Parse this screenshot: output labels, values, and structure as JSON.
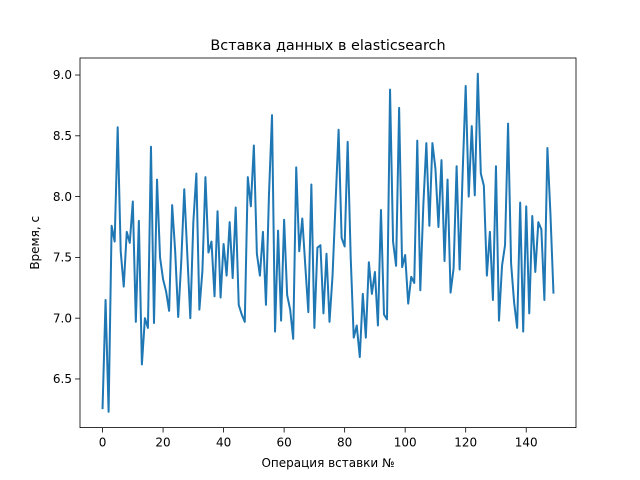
{
  "chart_data": {
    "type": "line",
    "title": "Вставка данных в elasticsearch",
    "xlabel": "Операция вставки №",
    "ylabel": "Время, с",
    "xlim": [
      -7.45,
      156.45
    ],
    "ylim": [
      6.1,
      9.14
    ],
    "xticks": [
      0,
      20,
      40,
      60,
      80,
      100,
      120,
      140
    ],
    "xtick_labels": [
      "0",
      "20",
      "40",
      "60",
      "80",
      "100",
      "120",
      "140"
    ],
    "yticks": [
      6.5,
      7.0,
      7.5,
      8.0,
      8.5,
      9.0
    ],
    "ytick_labels": [
      "6.5",
      "7.0",
      "7.5",
      "8.0",
      "8.5",
      "9.0"
    ],
    "grid": false,
    "legend": "none",
    "series": [
      {
        "color": "#1f77b4",
        "x": [
          0,
          1,
          2,
          3,
          4,
          5,
          6,
          7,
          8,
          9,
          10,
          11,
          12,
          13,
          14,
          15,
          16,
          17,
          18,
          19,
          20,
          21,
          22,
          23,
          24,
          25,
          26,
          27,
          28,
          29,
          30,
          31,
          32,
          33,
          34,
          35,
          36,
          37,
          38,
          39,
          40,
          41,
          42,
          43,
          44,
          45,
          46,
          47,
          48,
          49,
          50,
          51,
          52,
          53,
          54,
          55,
          56,
          57,
          58,
          59,
          60,
          61,
          62,
          63,
          64,
          65,
          66,
          67,
          68,
          69,
          70,
          71,
          72,
          73,
          74,
          75,
          76,
          77,
          78,
          79,
          80,
          81,
          82,
          83,
          84,
          85,
          86,
          87,
          88,
          89,
          90,
          91,
          92,
          93,
          94,
          95,
          96,
          97,
          98,
          99,
          100,
          101,
          102,
          103,
          104,
          105,
          106,
          107,
          108,
          109,
          110,
          111,
          112,
          113,
          114,
          115,
          116,
          117,
          118,
          119,
          120,
          121,
          122,
          123,
          124,
          125,
          126,
          127,
          128,
          129,
          130,
          131,
          132,
          133,
          134,
          135,
          136,
          137,
          138,
          139,
          140,
          141,
          142,
          143,
          144,
          145,
          146,
          147,
          148,
          149
        ],
        "y": [
          6.26,
          7.15,
          6.23,
          7.76,
          7.63,
          8.57,
          7.55,
          7.26,
          7.71,
          7.62,
          7.96,
          6.97,
          7.8,
          6.62,
          7.0,
          6.92,
          8.41,
          6.96,
          8.14,
          7.5,
          7.32,
          7.22,
          7.06,
          7.93,
          7.55,
          7.01,
          7.46,
          8.06,
          7.53,
          7.0,
          7.79,
          8.19,
          7.07,
          7.39,
          8.16,
          7.54,
          7.63,
          7.18,
          7.88,
          7.17,
          7.61,
          7.35,
          7.79,
          7.33,
          7.91,
          7.11,
          7.03,
          6.97,
          8.16,
          7.92,
          8.42,
          7.53,
          7.35,
          7.71,
          7.11,
          8.02,
          8.67,
          6.89,
          7.72,
          6.98,
          7.81,
          7.19,
          7.07,
          6.83,
          8.24,
          7.55,
          7.82,
          7.43,
          7.05,
          8.1,
          6.92,
          7.58,
          7.6,
          7.04,
          7.53,
          6.97,
          7.35,
          7.95,
          8.55,
          7.66,
          7.59,
          8.45,
          7.5,
          6.84,
          6.94,
          6.68,
          7.2,
          6.84,
          7.46,
          7.2,
          7.38,
          6.94,
          7.89,
          7.03,
          6.99,
          8.88,
          7.63,
          7.43,
          8.73,
          7.42,
          7.52,
          7.12,
          7.34,
          7.29,
          8.46,
          7.23,
          7.93,
          8.44,
          7.76,
          8.44,
          8.23,
          7.75,
          8.3,
          7.47,
          8.14,
          7.21,
          7.41,
          8.25,
          7.4,
          8.2,
          8.91,
          8.0,
          8.58,
          8.01,
          9.01,
          8.19,
          8.09,
          7.35,
          7.71,
          7.15,
          8.25,
          6.98,
          7.43,
          7.6,
          8.6,
          7.45,
          7.13,
          6.92,
          7.95,
          6.89,
          7.92,
          7.04,
          7.84,
          7.38,
          7.79,
          7.73,
          7.15,
          8.4,
          7.86,
          7.21
        ]
      }
    ]
  }
}
